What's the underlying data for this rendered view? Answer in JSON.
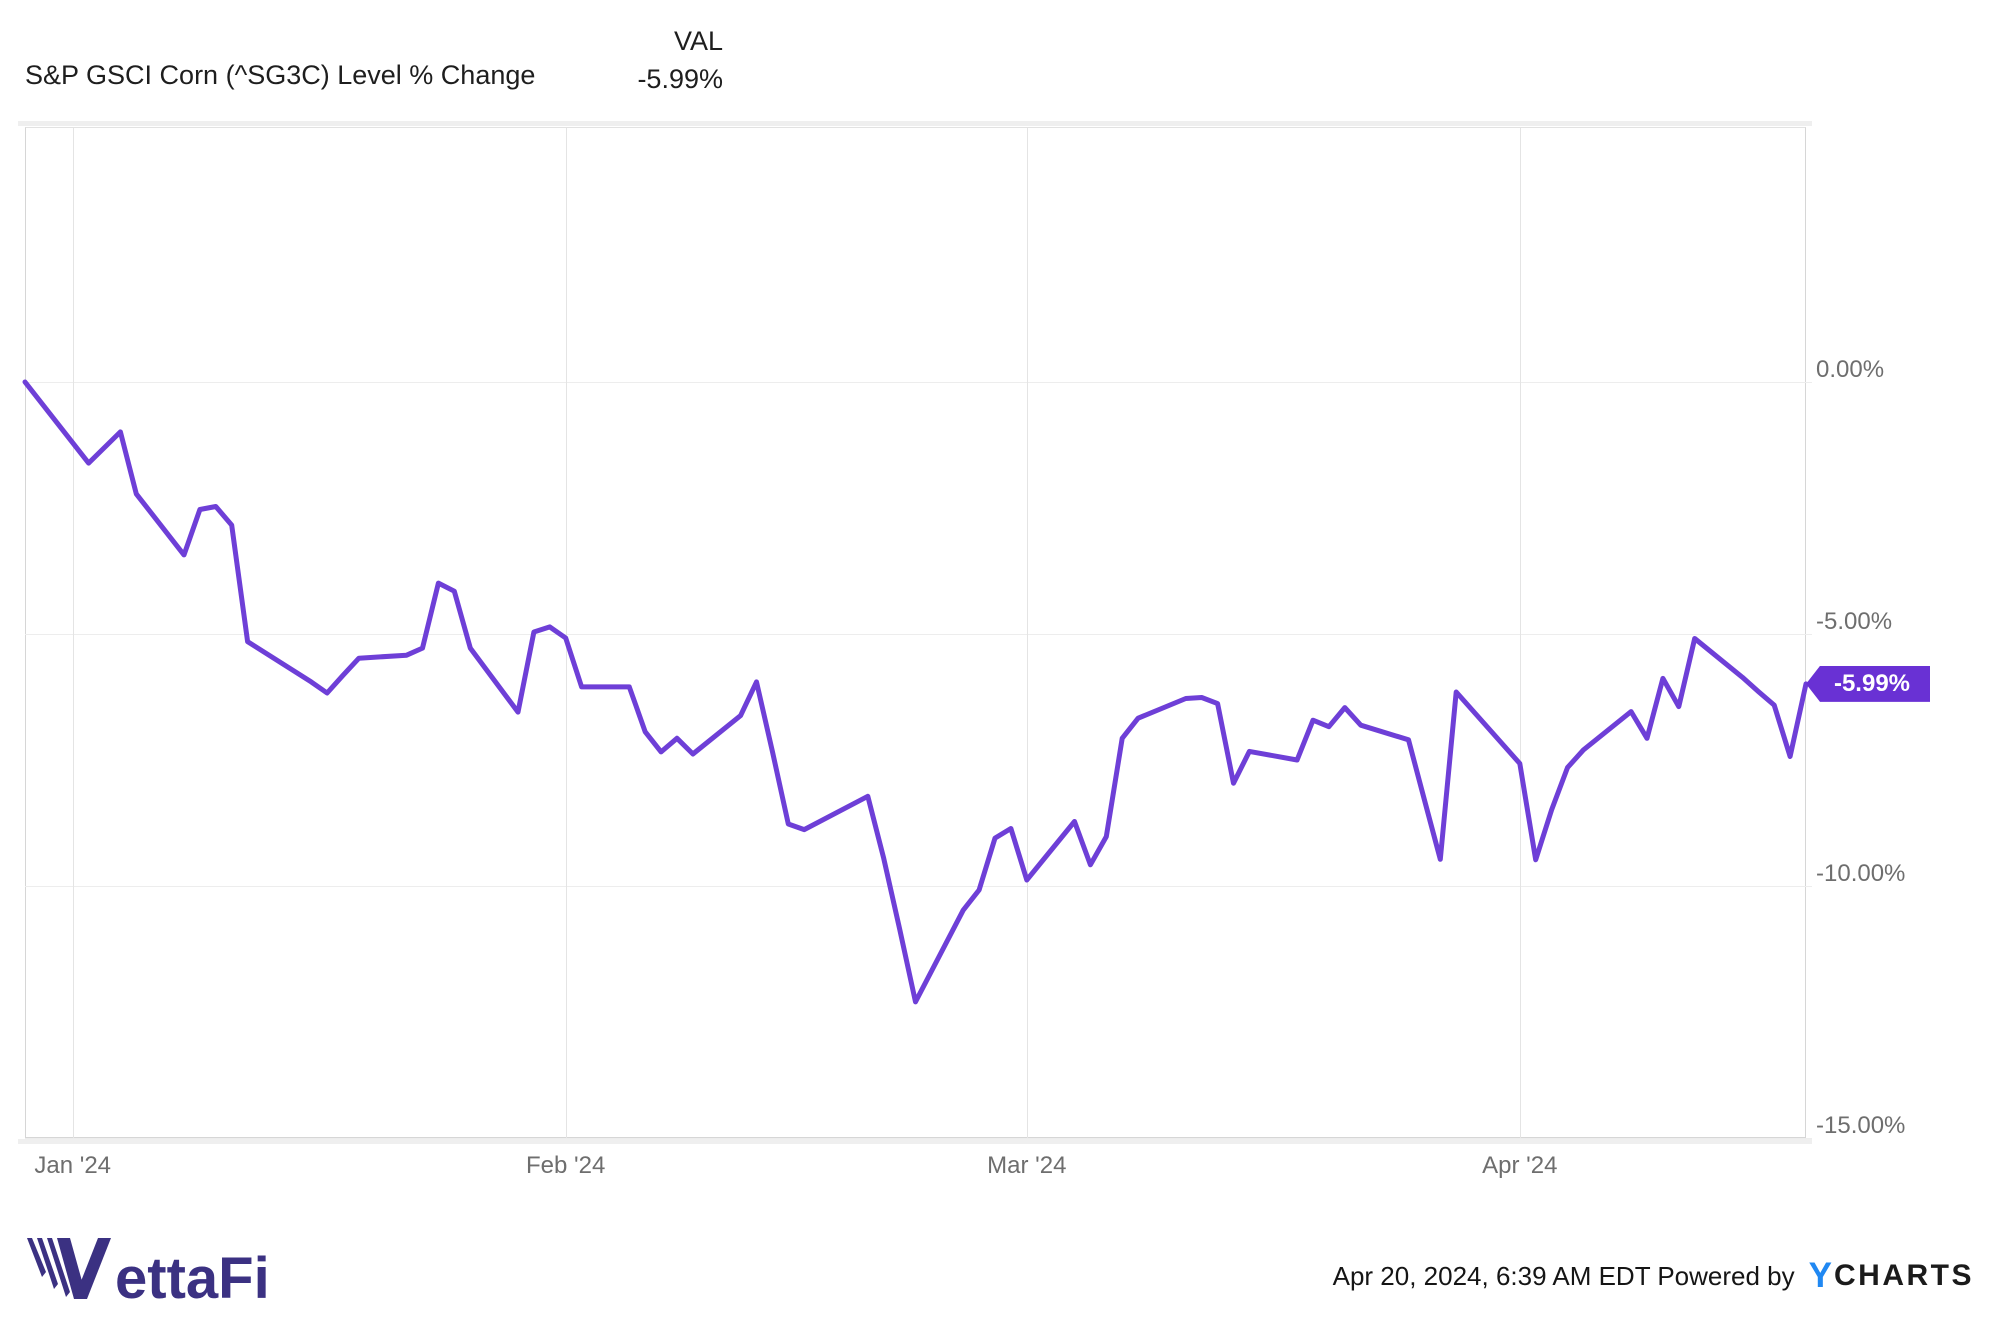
{
  "header": {
    "title": "S&P GSCI Corn (^SG3C) Level % Change",
    "val_label": "VAL",
    "val_value": "-5.99%"
  },
  "badge": {
    "text": "-5.99%",
    "bg_color": "#6931d4"
  },
  "footer": {
    "brand": "VettaFi",
    "brand_color": "#3b3182",
    "timestamp_attribution": "Apr 20, 2024, 6:39 AM EDT Powered by",
    "ycharts_y": "Y",
    "ycharts_charts": "CHARTS",
    "ycharts_y_color": "#2088f2"
  },
  "chart_data": {
    "type": "line",
    "title": "S&P GSCI Corn (^SG3C) Level % Change",
    "series_name": "S&P GSCI Corn (^SG3C) Level % Change",
    "line_color": "#6e3fd7",
    "legend_position": "none",
    "grid": true,
    "ylabel": "",
    "xlabel": "",
    "ylim_pct": [
      -15.06,
      5.06
    ],
    "x_range_calendar_days": 112,
    "y_ticks": [
      {
        "label": "0.00%",
        "value": 0
      },
      {
        "label": "-5.00%",
        "value": -5
      },
      {
        "label": "-10.00%",
        "value": -10
      },
      {
        "label": "-15.00%",
        "value": -15
      }
    ],
    "x_ticks": [
      {
        "label": "Jan '24",
        "offset": 3
      },
      {
        "label": "Feb '24",
        "offset": 34
      },
      {
        "label": "Mar '24",
        "offset": 63
      },
      {
        "label": "Apr '24",
        "offset": 94
      }
    ],
    "last_value_pct": -5.99,
    "points": [
      {
        "date": "Dec 29 '23",
        "offset": 0,
        "value": 0.0
      },
      {
        "date": "Jan 2",
        "offset": 4,
        "value": -1.61
      },
      {
        "date": "Jan 3",
        "offset": 5,
        "value": -1.3
      },
      {
        "date": "Jan 4",
        "offset": 6,
        "value": -0.99
      },
      {
        "date": "Jan 5",
        "offset": 7,
        "value": -2.22
      },
      {
        "date": "Jan 8",
        "offset": 10,
        "value": -3.43
      },
      {
        "date": "Jan 9",
        "offset": 11,
        "value": -2.53
      },
      {
        "date": "Jan 10",
        "offset": 12,
        "value": -2.47
      },
      {
        "date": "Jan 11",
        "offset": 13,
        "value": -2.84
      },
      {
        "date": "Jan 12",
        "offset": 14,
        "value": -5.15
      },
      {
        "date": "Jan 16",
        "offset": 18,
        "value": -5.95
      },
      {
        "date": "Jan 17",
        "offset": 19,
        "value": -6.17
      },
      {
        "date": "Jan 18",
        "offset": 20,
        "value": -5.82
      },
      {
        "date": "Jan 19",
        "offset": 21,
        "value": -5.48
      },
      {
        "date": "Jan 22",
        "offset": 24,
        "value": -5.42
      },
      {
        "date": "Jan 23",
        "offset": 25,
        "value": -5.28
      },
      {
        "date": "Jan 24",
        "offset": 26,
        "value": -3.99
      },
      {
        "date": "Jan 25",
        "offset": 27,
        "value": -4.15
      },
      {
        "date": "Jan 26",
        "offset": 28,
        "value": -5.28
      },
      {
        "date": "Jan 29",
        "offset": 31,
        "value": -6.55
      },
      {
        "date": "Jan 30",
        "offset": 32,
        "value": -4.96
      },
      {
        "date": "Jan 31",
        "offset": 33,
        "value": -4.86
      },
      {
        "date": "Feb 1",
        "offset": 34,
        "value": -5.08
      },
      {
        "date": "Feb 2",
        "offset": 35,
        "value": -6.05
      },
      {
        "date": "Feb 5",
        "offset": 38,
        "value": -6.05
      },
      {
        "date": "Feb 6",
        "offset": 39,
        "value": -6.94
      },
      {
        "date": "Feb 7",
        "offset": 40,
        "value": -7.34
      },
      {
        "date": "Feb 8",
        "offset": 41,
        "value": -7.07
      },
      {
        "date": "Feb 9",
        "offset": 42,
        "value": -7.38
      },
      {
        "date": "Feb 12",
        "offset": 45,
        "value": -6.62
      },
      {
        "date": "Feb 13",
        "offset": 46,
        "value": -5.95
      },
      {
        "date": "Feb 14",
        "offset": 47,
        "value": -7.33
      },
      {
        "date": "Feb 15",
        "offset": 48,
        "value": -8.77
      },
      {
        "date": "Feb 16",
        "offset": 49,
        "value": -8.88
      },
      {
        "date": "Feb 20",
        "offset": 53,
        "value": -8.22
      },
      {
        "date": "Feb 21",
        "offset": 54,
        "value": -9.45
      },
      {
        "date": "Feb 22",
        "offset": 55,
        "value": -10.85
      },
      {
        "date": "Feb 23",
        "offset": 56,
        "value": -12.3
      },
      {
        "date": "Feb 26",
        "offset": 59,
        "value": -10.48
      },
      {
        "date": "Feb 27",
        "offset": 60,
        "value": -10.08
      },
      {
        "date": "Feb 28",
        "offset": 61,
        "value": -9.05
      },
      {
        "date": "Feb 29",
        "offset": 62,
        "value": -8.86
      },
      {
        "date": "Mar 1",
        "offset": 63,
        "value": -9.88
      },
      {
        "date": "Mar 4",
        "offset": 66,
        "value": -8.72
      },
      {
        "date": "Mar 5",
        "offset": 67,
        "value": -9.58
      },
      {
        "date": "Mar 6",
        "offset": 68,
        "value": -9.02
      },
      {
        "date": "Mar 7",
        "offset": 69,
        "value": -7.07
      },
      {
        "date": "Mar 8",
        "offset": 70,
        "value": -6.67
      },
      {
        "date": "Mar 11",
        "offset": 73,
        "value": -6.28
      },
      {
        "date": "Mar 12",
        "offset": 74,
        "value": -6.26
      },
      {
        "date": "Mar 13",
        "offset": 75,
        "value": -6.38
      },
      {
        "date": "Mar 14",
        "offset": 76,
        "value": -7.96
      },
      {
        "date": "Mar 15",
        "offset": 77,
        "value": -7.33
      },
      {
        "date": "Mar 18",
        "offset": 80,
        "value": -7.5
      },
      {
        "date": "Mar 19",
        "offset": 81,
        "value": -6.71
      },
      {
        "date": "Mar 20",
        "offset": 82,
        "value": -6.84
      },
      {
        "date": "Mar 21",
        "offset": 83,
        "value": -6.46
      },
      {
        "date": "Mar 22",
        "offset": 84,
        "value": -6.81
      },
      {
        "date": "Mar 25",
        "offset": 87,
        "value": -7.1
      },
      {
        "date": "Mar 26",
        "offset": 88,
        "value": -8.29
      },
      {
        "date": "Mar 27",
        "offset": 89,
        "value": -9.47
      },
      {
        "date": "Mar 28",
        "offset": 90,
        "value": -6.15
      },
      {
        "date": "Apr 1",
        "offset": 94,
        "value": -7.57
      },
      {
        "date": "Apr 2",
        "offset": 95,
        "value": -9.48
      },
      {
        "date": "Apr 3",
        "offset": 96,
        "value": -8.49
      },
      {
        "date": "Apr 4",
        "offset": 97,
        "value": -7.65
      },
      {
        "date": "Apr 5",
        "offset": 98,
        "value": -7.3
      },
      {
        "date": "Apr 8",
        "offset": 101,
        "value": -6.54
      },
      {
        "date": "Apr 9",
        "offset": 102,
        "value": -7.07
      },
      {
        "date": "Apr 10",
        "offset": 103,
        "value": -5.88
      },
      {
        "date": "Apr 11",
        "offset": 104,
        "value": -6.44
      },
      {
        "date": "Apr 12",
        "offset": 105,
        "value": -5.09
      },
      {
        "date": "Apr 15",
        "offset": 108,
        "value": -5.86
      },
      {
        "date": "Apr 16",
        "offset": 109,
        "value": -6.14
      },
      {
        "date": "Apr 17",
        "offset": 110,
        "value": -6.41
      },
      {
        "date": "Apr 18",
        "offset": 111,
        "value": -7.43
      },
      {
        "date": "Apr 19",
        "offset": 112,
        "value": -5.99
      }
    ]
  }
}
